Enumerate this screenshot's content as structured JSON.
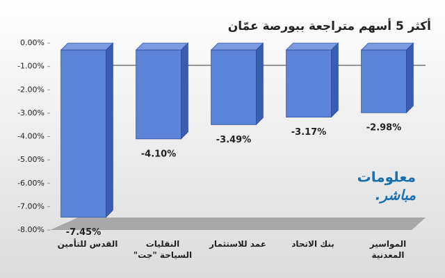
{
  "chart_data": {
    "type": "bar3d",
    "title": "أكثر 5 أسهم متراجعة ببورصة عمّان",
    "categories": [
      "القدس للتأمين",
      "النقليات السياحة \"جت\"",
      "عمد للاستثمار",
      "بنك الاتحاد",
      "المواسير المعدنية"
    ],
    "values": [
      -7.45,
      -4.1,
      -3.49,
      -3.17,
      -2.98
    ],
    "value_labels": [
      "-7.45%",
      "-4.10%",
      "-3.49%",
      "-3.17%",
      "-2.98%"
    ],
    "color": "#5b83d8",
    "ylim": [
      -8,
      0
    ],
    "yticks": [
      {
        "value": 0,
        "label": "0.00%"
      },
      {
        "value": -1,
        "label": "-1.00%"
      },
      {
        "value": -2,
        "label": "-2.00%"
      },
      {
        "value": -3,
        "label": "-3.00%"
      },
      {
        "value": -4,
        "label": "-4.00%"
      },
      {
        "value": -5,
        "label": "-5.00%"
      },
      {
        "value": -6,
        "label": "-6.00%"
      },
      {
        "value": -7,
        "label": "-7.00%"
      },
      {
        "value": -8,
        "label": "-8.00%"
      }
    ],
    "grid": false,
    "watermark": [
      "معلومات",
      "مباشر."
    ]
  }
}
